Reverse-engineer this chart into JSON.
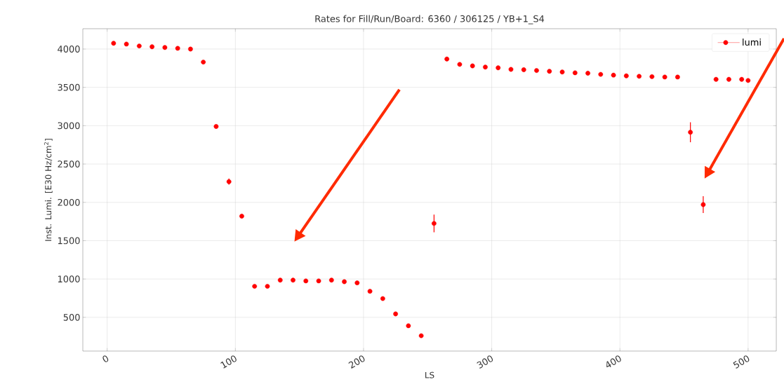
{
  "chart_data": {
    "type": "scatter",
    "title": "Rates for Fill/Run/Board: 6360 / 306125 / YB+1_S4",
    "xlabel": "LS",
    "ylabel": "Inst. Lumi. [E30 Hz/cm$^{2}$]",
    "x": [
      5,
      15,
      25,
      35,
      45,
      55,
      65,
      75,
      85,
      95,
      105,
      115,
      125,
      135,
      145,
      155,
      165,
      175,
      185,
      195,
      205,
      215,
      225,
      235,
      245,
      255,
      265,
      275,
      285,
      295,
      305,
      315,
      325,
      335,
      345,
      355,
      365,
      375,
      385,
      395,
      405,
      415,
      425,
      435,
      445,
      455,
      465,
      475,
      485,
      495,
      500
    ],
    "series": [
      {
        "name": "lumi",
        "color": "#ff0000",
        "values": [
          4075,
          4065,
          4040,
          4030,
          4020,
          4010,
          4000,
          3830,
          2990,
          2270,
          1820,
          905,
          905,
          985,
          985,
          975,
          975,
          985,
          965,
          950,
          840,
          745,
          545,
          390,
          260,
          1725,
          3870,
          3800,
          3780,
          3765,
          3755,
          3735,
          3730,
          3720,
          3710,
          3700,
          3690,
          3685,
          3670,
          3660,
          3650,
          3645,
          3640,
          3635,
          3635,
          2915,
          1970,
          3605,
          3605,
          3605,
          3590
        ],
        "errors": [
          null,
          null,
          null,
          null,
          null,
          null,
          null,
          null,
          null,
          40,
          null,
          null,
          null,
          null,
          null,
          null,
          null,
          null,
          null,
          null,
          null,
          null,
          null,
          null,
          null,
          115,
          null,
          null,
          null,
          null,
          null,
          null,
          null,
          null,
          null,
          null,
          null,
          null,
          null,
          null,
          null,
          null,
          null,
          null,
          null,
          130,
          110,
          null,
          null,
          null,
          null
        ]
      }
    ],
    "xlim": [
      -19,
      522
    ],
    "ylim": [
      60,
      4265
    ],
    "xticks": [
      0,
      100,
      200,
      300,
      400,
      500
    ],
    "yticks": [
      500,
      1000,
      1500,
      2000,
      2500,
      3000,
      3500,
      4000
    ],
    "grid": true,
    "legend": "top right",
    "marker": "circle"
  }
}
